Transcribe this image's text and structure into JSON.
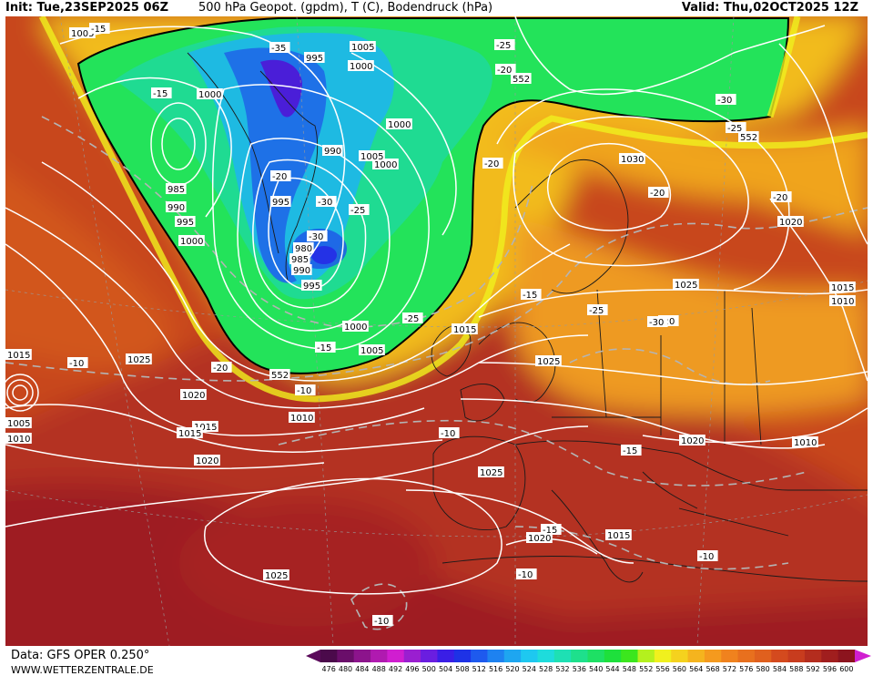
{
  "header": {
    "init": "Init: Tue,23SEP2025 06Z",
    "title": "500 hPa Geopot. (gpdm), T (C), Bodendruck (hPa)",
    "valid": "Valid: Thu,02OCT2025 12Z"
  },
  "footer": {
    "data_source": "Data: GFS OPER 0.250°",
    "website": "WWW.WETTERZENTRALE.DE"
  },
  "legend": {
    "values": [
      "476",
      "480",
      "484",
      "488",
      "492",
      "496",
      "500",
      "504",
      "508",
      "512",
      "516",
      "520",
      "524",
      "528",
      "532",
      "536",
      "540",
      "544",
      "548",
      "552",
      "556",
      "560",
      "564",
      "568",
      "572",
      "576",
      "580",
      "584",
      "588",
      "592",
      "596",
      "600"
    ],
    "colors": [
      "#4b0a4b",
      "#6a0e6a",
      "#8c148c",
      "#b01ab0",
      "#d01ed0",
      "#9a1fd0",
      "#6a1ee0",
      "#3a1ee6",
      "#1e32e6",
      "#1e5aee",
      "#1e82f0",
      "#1ea6f0",
      "#1ec8f0",
      "#1edcdc",
      "#1ee0b4",
      "#1ee08c",
      "#1ee064",
      "#1ee03c",
      "#3ce61e",
      "#b4f01e",
      "#f0f01e",
      "#f5d21e",
      "#f5b41e",
      "#f59a1e",
      "#f0821e",
      "#e8701e",
      "#e0601e",
      "#d44a1e",
      "#c83c1e",
      "#b42d1e",
      "#a01e1e",
      "#8c141e"
    ]
  },
  "isobar_labels": [
    "1005",
    "1005",
    "995",
    "1000",
    "1000",
    "1000",
    "1000",
    "990",
    "1005",
    "995",
    "985",
    "990",
    "995",
    "1000",
    "980",
    "985",
    "990",
    "995",
    "1000",
    "1015",
    "1025",
    "1020",
    "1005",
    "1015",
    "1010",
    "1015",
    "1010",
    "1005",
    "1020",
    "1025",
    "1030",
    "1025",
    "1020",
    "1015",
    "1010",
    "1025",
    "1020",
    "1020",
    "1015",
    "1025",
    "1010",
    "1015"
  ],
  "temperature_labels": [
    "-35",
    "-15",
    "-25",
    "-20",
    "-30",
    "-15",
    "-20",
    "-20",
    "-30",
    "-25",
    "-30",
    "-25",
    "-25",
    "-20",
    "-20",
    "-20",
    "-15",
    "-25",
    "-30",
    "-10",
    "-20",
    "-15",
    "-10",
    "-10",
    "-15",
    "-10",
    "-10",
    "-10",
    "-15"
  ],
  "contour_labels": [
    "552",
    "552",
    "552"
  ]
}
